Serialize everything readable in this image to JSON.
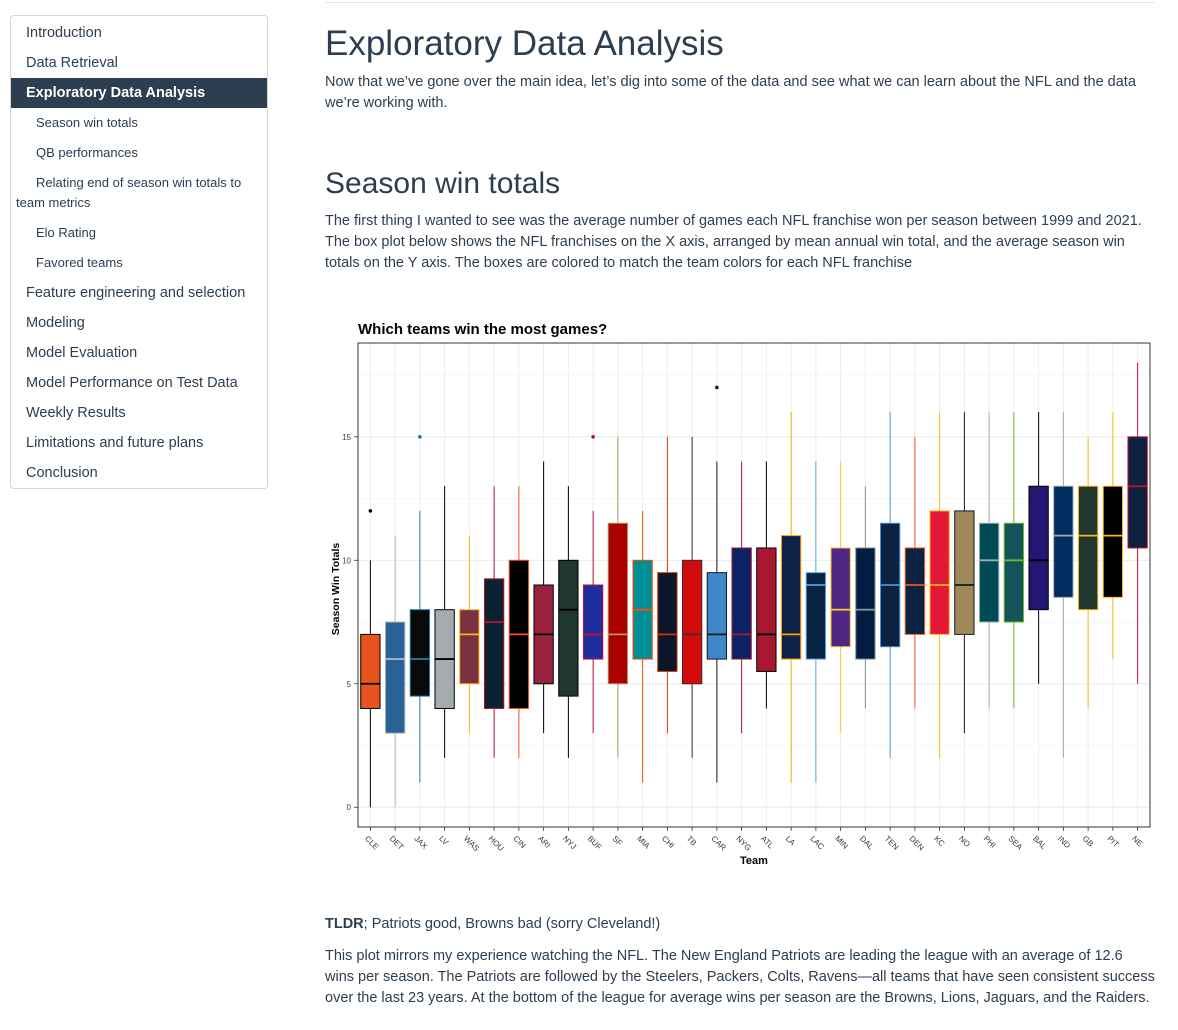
{
  "toc": {
    "items": [
      {
        "label": "Introduction",
        "level": 1,
        "active": false
      },
      {
        "label": "Data Retrieval",
        "level": 1,
        "active": false
      },
      {
        "label": "Exploratory Data Analysis",
        "level": 1,
        "active": true
      },
      {
        "label": "Season win totals",
        "level": 2,
        "active": false
      },
      {
        "label": "QB performances",
        "level": 2,
        "active": false
      },
      {
        "label": "Relating end of season win totals to team metrics",
        "level": 2,
        "active": false
      },
      {
        "label": "Elo Rating",
        "level": 2,
        "active": false
      },
      {
        "label": "Favored teams",
        "level": 2,
        "active": false
      },
      {
        "label": "Feature engineering and selection",
        "level": 1,
        "active": false
      },
      {
        "label": "Modeling",
        "level": 1,
        "active": false
      },
      {
        "label": "Model Evaluation",
        "level": 1,
        "active": false
      },
      {
        "label": "Model Performance on Test Data",
        "level": 1,
        "active": false
      },
      {
        "label": "Weekly Results",
        "level": 1,
        "active": false
      },
      {
        "label": "Limitations and future plans",
        "level": 1,
        "active": false
      },
      {
        "label": "Conclusion",
        "level": 1,
        "active": false
      }
    ]
  },
  "main": {
    "title": "Exploratory Data Analysis",
    "intro": "Now that we’ve gone over the main idea, let’s dig into some of the data and see what we can learn about the NFL and the data we’re working with.",
    "section_title": "Season win totals",
    "section_para": "The first thing I wanted to see was the average number of games each NFL franchise won per season between 1999 and 2021. The box plot below shows the NFL franchises on the X axis, arranged by mean annual win total, and the average season win totals on the Y axis. The boxes are colored to match the team colors for each NFL franchise",
    "tldr_label": "TLDR",
    "tldr_text": "; Patriots good, Browns bad (sorry Cleveland!)",
    "closing_para": "This plot mirrors my experience watching the NFL. The New England Patriots are leading the league with an average of 12.6 wins per season. The Patriots are followed by the Steelers, Packers, Colts, Ravens—all teams that have seen consistent success over the last 23 years. At the bottom of the league for average wins per season are the Browns, Lions, Jaguars, and the Raiders."
  },
  "chart_data": {
    "type": "box",
    "title": "Which teams win the most games?",
    "xlabel": "Team",
    "ylabel": "Season Win Totals",
    "ylim": [
      -0.8,
      18.8
    ],
    "yticks": [
      0,
      5,
      10,
      15
    ],
    "grid": true,
    "legend": "none",
    "series": [
      {
        "team": "CLE",
        "min": 0,
        "q1": 4,
        "median": 5,
        "q3": 7,
        "max": 10,
        "outliers": [
          12
        ],
        "fill": "#e8521c",
        "line": "#000000"
      },
      {
        "team": "DET",
        "min": 0,
        "q1": 3,
        "median": 6,
        "q3": 7.5,
        "max": 11,
        "outliers": [],
        "fill": "#2a6296",
        "line": "#b0b7bc"
      },
      {
        "team": "JAX",
        "min": 1,
        "q1": 4.5,
        "median": 6,
        "q3": 8,
        "max": 12,
        "outliers": [
          15
        ],
        "fill": "#0a0a0a",
        "line": "#1f78a0"
      },
      {
        "team": "LV",
        "min": 2,
        "q1": 4,
        "median": 6,
        "q3": 8,
        "max": 13,
        "outliers": [],
        "fill": "#a5acaf",
        "line": "#000000"
      },
      {
        "team": "WAS",
        "min": 3,
        "q1": 5,
        "median": 7,
        "q3": 8,
        "max": 11,
        "outliers": [],
        "fill": "#773141",
        "line": "#ffb612"
      },
      {
        "team": "HOU",
        "min": 2,
        "q1": 4,
        "median": 7.5,
        "q3": 9.25,
        "max": 13,
        "outliers": [],
        "fill": "#0c2231",
        "line": "#a71930"
      },
      {
        "team": "CIN",
        "min": 2,
        "q1": 4,
        "median": 7,
        "q3": 10,
        "max": 13,
        "outliers": [],
        "fill": "#000000",
        "line": "#fb4f14"
      },
      {
        "team": "ARI",
        "min": 3,
        "q1": 5,
        "median": 7,
        "q3": 9,
        "max": 14,
        "outliers": [],
        "fill": "#97233f",
        "line": "#000000"
      },
      {
        "team": "NYJ",
        "min": 2,
        "q1": 4.5,
        "median": 8,
        "q3": 10,
        "max": 13,
        "outliers": [],
        "fill": "#203731",
        "line": "#000000"
      },
      {
        "team": "BUF",
        "min": 3,
        "q1": 6,
        "median": 7,
        "q3": 9,
        "max": 12,
        "outliers": [
          15
        ],
        "fill": "#1f2e9e",
        "line": "#c60c30"
      },
      {
        "team": "SF",
        "min": 2,
        "q1": 5,
        "median": 7,
        "q3": 11.5,
        "max": 15,
        "outliers": [],
        "fill": "#aa0000",
        "line": "#b3995d"
      },
      {
        "team": "MIA",
        "min": 1,
        "q1": 6,
        "median": 8,
        "q3": 10,
        "max": 12,
        "outliers": [],
        "fill": "#008e97",
        "line": "#fc4c02"
      },
      {
        "team": "CHI",
        "min": 3,
        "q1": 5.5,
        "median": 7,
        "q3": 9.5,
        "max": 15,
        "outliers": [],
        "fill": "#0b162a",
        "line": "#c83803"
      },
      {
        "team": "TB",
        "min": 2,
        "q1": 5,
        "median": 7,
        "q3": 10,
        "max": 15,
        "outliers": [],
        "fill": "#d50a0a",
        "line": "#34302b"
      },
      {
        "team": "CAR",
        "min": 1,
        "q1": 6,
        "median": 7,
        "q3": 9.5,
        "max": 14,
        "outliers": [
          17
        ],
        "fill": "#3f87c9",
        "line": "#101820"
      },
      {
        "team": "NYG",
        "min": 3,
        "q1": 6,
        "median": 7,
        "q3": 10.5,
        "max": 14,
        "outliers": [],
        "fill": "#0b2265",
        "line": "#a71930"
      },
      {
        "team": "ATL",
        "min": 4,
        "q1": 5.5,
        "median": 7,
        "q3": 10.5,
        "max": 14,
        "outliers": [],
        "fill": "#a71930",
        "line": "#000000"
      },
      {
        "team": "LA",
        "min": 1,
        "q1": 6,
        "median": 7,
        "q3": 11,
        "max": 16,
        "outliers": [],
        "fill": "#0c2247",
        "line": "#ffa300"
      },
      {
        "team": "LAC",
        "min": 1,
        "q1": 6,
        "median": 9,
        "q3": 9.5,
        "max": 14,
        "outliers": [],
        "fill": "#0a2342",
        "line": "#5aa0e6"
      },
      {
        "team": "MIN",
        "min": 3,
        "q1": 6.5,
        "median": 8,
        "q3": 10.5,
        "max": 14,
        "outliers": [],
        "fill": "#4f2683",
        "line": "#ffc62f"
      },
      {
        "team": "DAL",
        "min": 4,
        "q1": 6,
        "median": 8,
        "q3": 10.5,
        "max": 13,
        "outliers": [],
        "fill": "#041e42",
        "line": "#869397"
      },
      {
        "team": "TEN",
        "min": 2,
        "q1": 6.5,
        "median": 9,
        "q3": 11.5,
        "max": 16,
        "outliers": [],
        "fill": "#0c2340",
        "line": "#4b92db"
      },
      {
        "team": "DEN",
        "min": 4,
        "q1": 7,
        "median": 9,
        "q3": 10.5,
        "max": 15,
        "outliers": [],
        "fill": "#0a2343",
        "line": "#fb4f14"
      },
      {
        "team": "KC",
        "min": 2,
        "q1": 7,
        "median": 9,
        "q3": 12,
        "max": 16,
        "outliers": [],
        "fill": "#e31837",
        "line": "#ffb81c"
      },
      {
        "team": "NO",
        "min": 3,
        "q1": 7,
        "median": 9,
        "q3": 12,
        "max": 16,
        "outliers": [],
        "fill": "#9f8958",
        "line": "#101820"
      },
      {
        "team": "PHI",
        "min": 4,
        "q1": 7.5,
        "median": 10,
        "q3": 11.5,
        "max": 16,
        "outliers": [],
        "fill": "#004c54",
        "line": "#a5acaf"
      },
      {
        "team": "SEA",
        "min": 4,
        "q1": 7.5,
        "median": 10,
        "q3": 11.5,
        "max": 16,
        "outliers": [],
        "fill": "#16525a",
        "line": "#69be28"
      },
      {
        "team": "BAL",
        "min": 5,
        "q1": 8,
        "median": 10,
        "q3": 13,
        "max": 16,
        "outliers": [],
        "fill": "#241773",
        "line": "#000000"
      },
      {
        "team": "IND",
        "min": 2,
        "q1": 8.5,
        "median": 11,
        "q3": 13,
        "max": 16,
        "outliers": [],
        "fill": "#002c5f",
        "line": "#a2aaad"
      },
      {
        "team": "GB",
        "min": 4,
        "q1": 8,
        "median": 11,
        "q3": 13,
        "max": 15,
        "outliers": [],
        "fill": "#203731",
        "line": "#ffb612"
      },
      {
        "team": "PIT",
        "min": 6,
        "q1": 8.5,
        "median": 11,
        "q3": 13,
        "max": 16,
        "outliers": [],
        "fill": "#000000",
        "line": "#ffb612"
      },
      {
        "team": "NE",
        "min": 5,
        "q1": 10.5,
        "median": 13,
        "q3": 15,
        "max": 18,
        "outliers": [],
        "fill": "#0c2340",
        "line": "#c60c30"
      }
    ]
  }
}
